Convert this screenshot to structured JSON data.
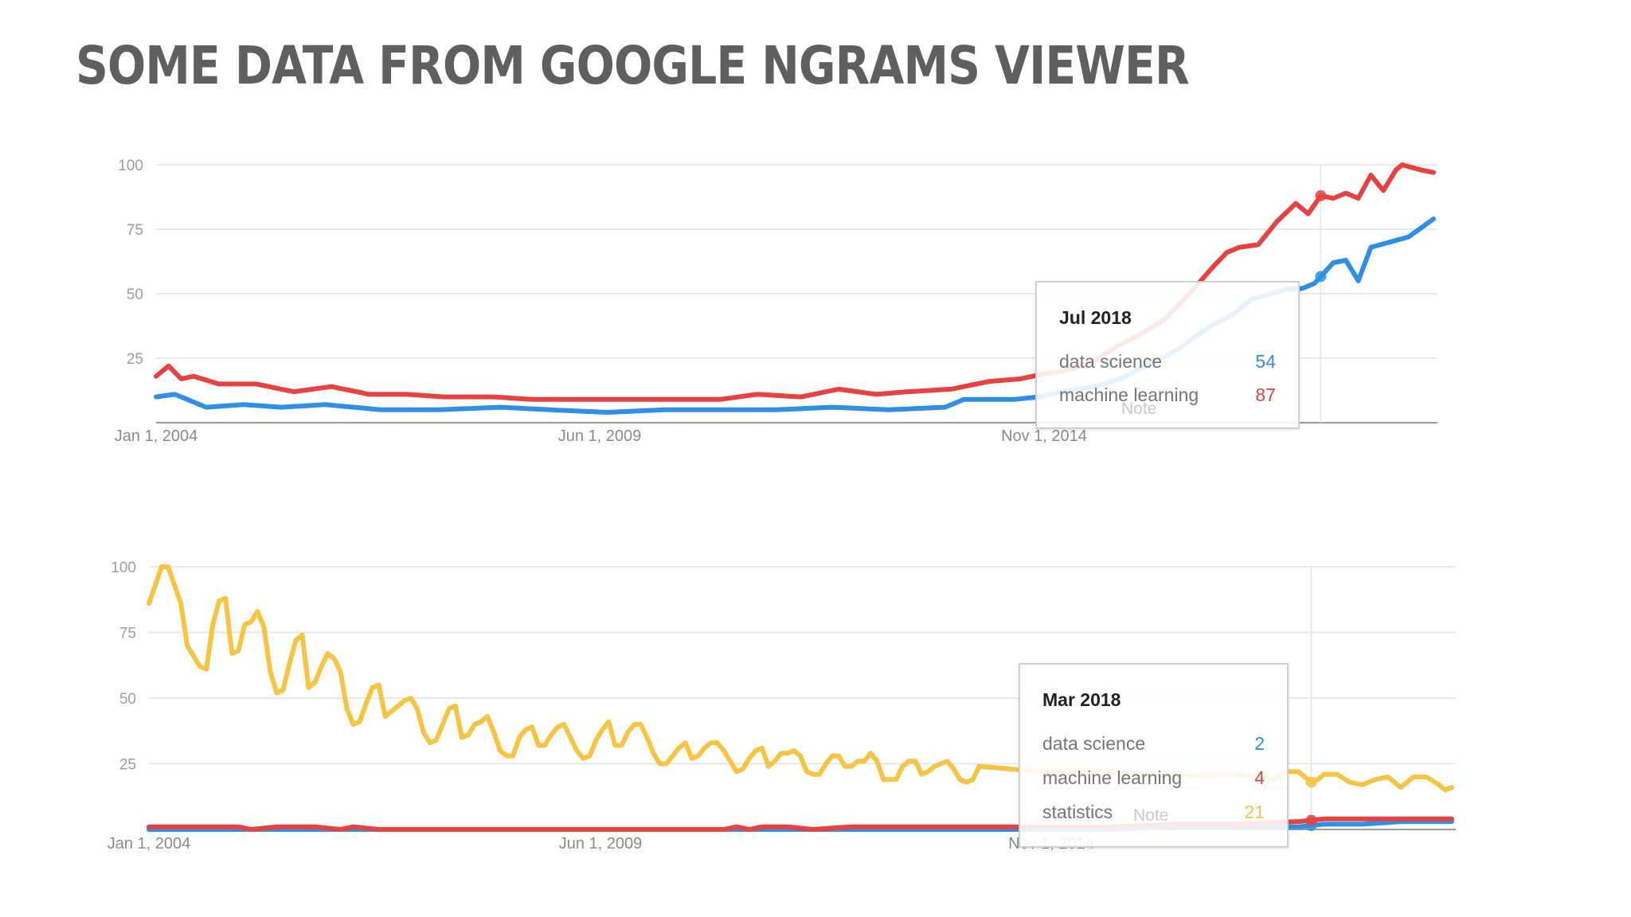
{
  "slide": {
    "title": "SOME DATA FROM GOOGLE NGRAMS VIEWER"
  },
  "colors": {
    "data_science": "#2f8fe6",
    "machine_learning": "#e84141",
    "statistics": "#f6c343"
  },
  "chart_data": [
    {
      "type": "line",
      "ylim": [
        0,
        100
      ],
      "yticks": [
        "25",
        "50",
        "75",
        "100"
      ],
      "xtick_labels": [
        "Jan 1, 2004",
        "Jun 1, 2009",
        "Nov 1, 2014"
      ],
      "x_start": "Jan 2004",
      "x_end": "Dec 2018",
      "series": [
        {
          "name": "data science",
          "color": "#2f8fe6",
          "anchors": [
            [
              0,
              10
            ],
            [
              3,
              11
            ],
            [
              8,
              6
            ],
            [
              14,
              7
            ],
            [
              20,
              6
            ],
            [
              27,
              7
            ],
            [
              36,
              5
            ],
            [
              45,
              5
            ],
            [
              55,
              6
            ],
            [
              63,
              5
            ],
            [
              72,
              4
            ],
            [
              81,
              5
            ],
            [
              90,
              5
            ],
            [
              99,
              5
            ],
            [
              108,
              6
            ],
            [
              117,
              5
            ],
            [
              126,
              6
            ],
            [
              129,
              9
            ],
            [
              137,
              9
            ],
            [
              141,
              10
            ],
            [
              145,
              12
            ],
            [
              150,
              14
            ],
            [
              154,
              17
            ],
            [
              158,
              22
            ],
            [
              163,
              28
            ],
            [
              168,
              37
            ],
            [
              172,
              42
            ],
            [
              175,
              48
            ],
            [
              178,
              50
            ],
            [
              181,
              52
            ],
            [
              183,
              52
            ],
            [
              185,
              54
            ],
            [
              188,
              62
            ],
            [
              190,
              63
            ],
            [
              192,
              55
            ],
            [
              194,
              68
            ],
            [
              197,
              70
            ],
            [
              200,
              72
            ],
            [
              204,
              79
            ]
          ]
        },
        {
          "name": "machine learning",
          "color": "#e84141",
          "anchors": [
            [
              0,
              18
            ],
            [
              2,
              22
            ],
            [
              4,
              17
            ],
            [
              6,
              18
            ],
            [
              10,
              15
            ],
            [
              16,
              15
            ],
            [
              22,
              12
            ],
            [
              28,
              14
            ],
            [
              34,
              11
            ],
            [
              40,
              11
            ],
            [
              46,
              10
            ],
            [
              54,
              10
            ],
            [
              60,
              9
            ],
            [
              68,
              9
            ],
            [
              76,
              9
            ],
            [
              84,
              9
            ],
            [
              90,
              9
            ],
            [
              96,
              11
            ],
            [
              103,
              10
            ],
            [
              109,
              13
            ],
            [
              115,
              11
            ],
            [
              120,
              12
            ],
            [
              127,
              13
            ],
            [
              133,
              16
            ],
            [
              138,
              17
            ],
            [
              142,
              19
            ],
            [
              145,
              20
            ],
            [
              149,
              23
            ],
            [
              153,
              29
            ],
            [
              157,
              34
            ],
            [
              161,
              40
            ],
            [
              165,
              50
            ],
            [
              169,
              61
            ],
            [
              171,
              66
            ],
            [
              173,
              68
            ],
            [
              176,
              69
            ],
            [
              179,
              78
            ],
            [
              182,
              85
            ],
            [
              184,
              81
            ],
            [
              186,
              88
            ],
            [
              188,
              87
            ],
            [
              190,
              89
            ],
            [
              192,
              87
            ],
            [
              194,
              96
            ],
            [
              196,
              90
            ],
            [
              198,
              98
            ],
            [
              199,
              100
            ],
            [
              202,
              98
            ],
            [
              204,
              97
            ]
          ]
        }
      ],
      "tooltip": {
        "date": "Jul 2018",
        "note": "Note",
        "rows": [
          {
            "name": "data science",
            "value": "54"
          },
          {
            "name": "machine learning",
            "value": "87"
          }
        ]
      }
    },
    {
      "type": "line",
      "ylim": [
        0,
        100
      ],
      "yticks": [
        "25",
        "50",
        "75",
        "100"
      ],
      "xtick_labels": [
        "Jan 1, 2004",
        "Jun 1, 2009",
        "Nov 1, 2014"
      ],
      "x_start": "Jan 2004",
      "x_end": "Dec 2018",
      "series": [
        {
          "name": "data science",
          "color": "#2f8fe6",
          "anchors": [
            [
              0,
              0
            ],
            [
              150,
              0
            ],
            [
              160,
              1
            ],
            [
              170,
              1
            ],
            [
              180,
              1
            ],
            [
              184,
              2
            ],
            [
              190,
              2
            ],
            [
              196,
              3
            ],
            [
              204,
              3
            ]
          ]
        },
        {
          "name": "machine learning",
          "color": "#e84141",
          "anchors": [
            [
              0,
              1
            ],
            [
              14,
              1
            ],
            [
              16,
              0
            ],
            [
              20,
              1
            ],
            [
              26,
              1
            ],
            [
              30,
              0
            ],
            [
              32,
              1
            ],
            [
              36,
              0
            ],
            [
              40,
              0
            ],
            [
              90,
              0
            ],
            [
              92,
              1
            ],
            [
              94,
              0
            ],
            [
              96,
              1
            ],
            [
              100,
              1
            ],
            [
              104,
              0
            ],
            [
              110,
              1
            ],
            [
              140,
              1
            ],
            [
              150,
              1
            ],
            [
              160,
              2
            ],
            [
              170,
              2
            ],
            [
              180,
              3
            ],
            [
              184,
              4
            ],
            [
              190,
              4
            ],
            [
              204,
              4
            ]
          ]
        },
        {
          "name": "statistics",
          "color": "#f6c343",
          "anchors": [
            [
              0,
              86
            ],
            [
              2,
              100
            ],
            [
              3,
              100
            ],
            [
              5,
              86
            ],
            [
              6,
              70
            ],
            [
              8,
              62
            ],
            [
              9,
              61
            ],
            [
              10,
              78
            ],
            [
              11,
              87
            ],
            [
              12,
              88
            ],
            [
              13,
              67
            ],
            [
              14,
              68
            ],
            [
              15,
              78
            ],
            [
              16,
              79
            ],
            [
              17,
              83
            ],
            [
              18,
              77
            ],
            [
              19,
              60
            ],
            [
              20,
              52
            ],
            [
              21,
              53
            ],
            [
              22,
              63
            ],
            [
              23,
              72
            ],
            [
              24,
              74
            ],
            [
              25,
              54
            ],
            [
              26,
              56
            ],
            [
              27,
              62
            ],
            [
              28,
              67
            ],
            [
              29,
              65
            ],
            [
              30,
              60
            ],
            [
              31,
              46
            ],
            [
              32,
              40
            ],
            [
              33,
              41
            ],
            [
              34,
              48
            ],
            [
              35,
              54
            ],
            [
              36,
              55
            ],
            [
              37,
              43
            ],
            [
              38,
              45
            ],
            [
              39,
              47
            ],
            [
              40,
              49
            ],
            [
              41,
              50
            ],
            [
              42,
              46
            ],
            [
              43,
              37
            ],
            [
              44,
              33
            ],
            [
              45,
              34
            ],
            [
              46,
              40
            ],
            [
              47,
              46
            ],
            [
              48,
              47
            ],
            [
              49,
              35
            ],
            [
              50,
              36
            ],
            [
              51,
              40
            ],
            [
              52,
              41
            ],
            [
              53,
              43
            ],
            [
              54,
              37
            ],
            [
              55,
              30
            ],
            [
              56,
              28
            ],
            [
              57,
              28
            ],
            [
              58,
              35
            ],
            [
              59,
              38
            ],
            [
              60,
              39
            ],
            [
              61,
              32
            ],
            [
              62,
              32
            ],
            [
              63,
              36
            ],
            [
              64,
              39
            ],
            [
              65,
              40
            ],
            [
              66,
              35
            ],
            [
              67,
              30
            ],
            [
              68,
              27
            ],
            [
              69,
              28
            ],
            [
              70,
              34
            ],
            [
              71,
              38
            ],
            [
              72,
              41
            ],
            [
              73,
              32
            ],
            [
              74,
              32
            ],
            [
              75,
              37
            ],
            [
              76,
              40
            ],
            [
              77,
              40
            ],
            [
              78,
              35
            ],
            [
              79,
              29
            ],
            [
              80,
              25
            ],
            [
              81,
              25
            ],
            [
              82,
              28
            ],
            [
              83,
              31
            ],
            [
              84,
              33
            ],
            [
              85,
              27
            ],
            [
              86,
              28
            ],
            [
              87,
              31
            ],
            [
              88,
              33
            ],
            [
              89,
              33
            ],
            [
              90,
              30
            ],
            [
              91,
              26
            ],
            [
              92,
              22
            ],
            [
              93,
              23
            ],
            [
              94,
              27
            ],
            [
              95,
              30
            ],
            [
              96,
              31
            ],
            [
              97,
              24
            ],
            [
              98,
              26
            ],
            [
              99,
              29
            ],
            [
              100,
              29
            ],
            [
              101,
              30
            ],
            [
              102,
              28
            ],
            [
              103,
              22
            ],
            [
              104,
              21
            ],
            [
              105,
              21
            ],
            [
              106,
              25
            ],
            [
              107,
              28
            ],
            [
              108,
              28
            ],
            [
              109,
              24
            ],
            [
              110,
              24
            ],
            [
              111,
              26
            ],
            [
              112,
              26
            ],
            [
              113,
              29
            ],
            [
              114,
              26
            ],
            [
              115,
              19
            ],
            [
              116,
              19
            ],
            [
              117,
              19
            ],
            [
              118,
              24
            ],
            [
              119,
              26
            ],
            [
              120,
              26
            ],
            [
              121,
              21
            ],
            [
              122,
              22
            ],
            [
              123,
              24
            ],
            [
              124,
              25
            ],
            [
              125,
              26
            ],
            [
              126,
              23
            ],
            [
              127,
              19
            ],
            [
              128,
              18
            ],
            [
              129,
              19
            ],
            [
              130,
              24
            ],
            [
              140,
              22
            ],
            [
              150,
              22
            ],
            [
              160,
              20
            ],
            [
              170,
              21
            ],
            [
              176,
              19
            ],
            [
              178,
              22
            ],
            [
              180,
              22
            ],
            [
              182,
              18
            ],
            [
              183,
              19
            ],
            [
              184,
              21
            ],
            [
              186,
              21
            ],
            [
              188,
              18
            ],
            [
              190,
              17
            ],
            [
              192,
              19
            ],
            [
              194,
              20
            ],
            [
              196,
              16
            ],
            [
              198,
              20
            ],
            [
              200,
              20
            ],
            [
              202,
              17
            ],
            [
              203,
              15
            ],
            [
              204,
              16
            ]
          ]
        }
      ],
      "tooltip": {
        "date": "Mar 2018",
        "note": "Note",
        "rows": [
          {
            "name": "data science",
            "value": "2"
          },
          {
            "name": "machine learning",
            "value": "4"
          },
          {
            "name": "statistics",
            "value": "21"
          }
        ]
      }
    }
  ]
}
